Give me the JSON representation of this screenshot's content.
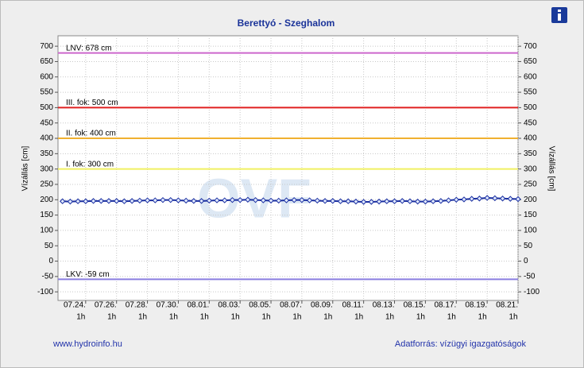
{
  "chart_data": {
    "type": "line",
    "title": "Berettyó - Szeghalom",
    "ylabel": "Vízállás [cm]",
    "watermark": "OVF",
    "footer_left": "www.hydroinfo.hu",
    "footer_right": "Adatforrás: vízügyi igazgatóságok",
    "grid": true,
    "xlim": [
      "07.22. 6h",
      "08.21. 1h"
    ],
    "ylim": [
      -128,
      734
    ],
    "yticks": [
      -100,
      -50,
      0,
      50,
      100,
      150,
      200,
      250,
      300,
      350,
      400,
      450,
      500,
      550,
      600,
      650,
      700
    ],
    "xticks": [
      {
        "value": "07.24. 1h",
        "label": [
          "07.24.",
          "1h"
        ]
      },
      {
        "value": "07.26. 1h",
        "label": [
          "07.26.",
          "1h"
        ]
      },
      {
        "value": "07.28. 1h",
        "label": [
          "07.28.",
          "1h"
        ]
      },
      {
        "value": "07.30. 1h",
        "label": [
          "07.30.",
          "1h"
        ]
      },
      {
        "value": "08.01. 1h",
        "label": [
          "08.01.",
          "1h"
        ]
      },
      {
        "value": "08.03. 1h",
        "label": [
          "08.03.",
          "1h"
        ]
      },
      {
        "value": "08.05. 1h",
        "label": [
          "08.05.",
          "1h"
        ]
      },
      {
        "value": "08.07. 1h",
        "label": [
          "08.07.",
          "1h"
        ]
      },
      {
        "value": "08.09. 1h",
        "label": [
          "08.09.",
          "1h"
        ]
      },
      {
        "value": "08.11. 1h",
        "label": [
          "08.11.",
          "1h"
        ]
      },
      {
        "value": "08.13. 1h",
        "label": [
          "08.13.",
          "1h"
        ]
      },
      {
        "value": "08.15. 1h",
        "label": [
          "08.15.",
          "1h"
        ]
      },
      {
        "value": "08.17. 1h",
        "label": [
          "08.17.",
          "1h"
        ]
      },
      {
        "value": "08.19. 1h",
        "label": [
          "08.19.",
          "1h"
        ]
      },
      {
        "value": "08.21. 1h",
        "label": [
          "08.21.",
          "1h"
        ]
      }
    ],
    "reference_lines": [
      {
        "value": 678,
        "label": "LNV: 678 cm",
        "color": "#cc66cc"
      },
      {
        "value": 500,
        "label": "III. fok: 500 cm",
        "color": "#e02020"
      },
      {
        "value": 400,
        "label": "II. fok: 400 cm",
        "color": "#f0b030"
      },
      {
        "value": 300,
        "label": "I. fok: 300 cm",
        "color": "#f0f060"
      },
      {
        "value": -59,
        "label": "LKV: -59 cm",
        "color": "#8a7ee0"
      }
    ],
    "x": [
      "07.22. 13h",
      "07.23. 1h",
      "07.23. 13h",
      "07.24. 1h",
      "07.24. 13h",
      "07.25. 1h",
      "07.25. 13h",
      "07.26. 1h",
      "07.26. 13h",
      "07.27. 1h",
      "07.27. 13h",
      "07.28. 1h",
      "07.28. 13h",
      "07.29. 1h",
      "07.29. 13h",
      "07.30. 1h",
      "07.30. 13h",
      "07.31. 1h",
      "07.31. 13h",
      "08.01. 1h",
      "08.01. 13h",
      "08.02. 1h",
      "08.02. 13h",
      "08.03. 1h",
      "08.03. 13h",
      "08.04. 1h",
      "08.04. 13h",
      "08.05. 1h",
      "08.05. 13h",
      "08.06. 1h",
      "08.06. 13h",
      "08.07. 1h",
      "08.07. 13h",
      "08.08. 1h",
      "08.08. 13h",
      "08.09. 1h",
      "08.09. 13h",
      "08.10. 1h",
      "08.10. 13h",
      "08.11. 1h",
      "08.11. 13h",
      "08.12. 1h",
      "08.12. 13h",
      "08.13. 1h",
      "08.13. 13h",
      "08.14. 1h",
      "08.14. 13h",
      "08.15. 1h",
      "08.15. 13h",
      "08.16. 1h",
      "08.16. 13h",
      "08.17. 1h",
      "08.17. 13h",
      "08.18. 1h",
      "08.18. 13h",
      "08.19. 1h",
      "08.19. 13h",
      "08.20. 1h",
      "08.20. 13h",
      "08.21. 1h"
    ],
    "series": [
      {
        "name": "Vízállás",
        "color": "#1a2fa0",
        "values": [
          195,
          194,
          195,
          195,
          196,
          196,
          196,
          196,
          195,
          196,
          197,
          198,
          198,
          199,
          199,
          198,
          197,
          196,
          196,
          197,
          198,
          198,
          199,
          199,
          200,
          199,
          198,
          197,
          197,
          198,
          199,
          199,
          198,
          197,
          196,
          196,
          195,
          195,
          194,
          193,
          193,
          194,
          195,
          195,
          196,
          195,
          194,
          194,
          195,
          196,
          198,
          200,
          201,
          203,
          204,
          206,
          205,
          204,
          203,
          202
        ]
      }
    ]
  }
}
